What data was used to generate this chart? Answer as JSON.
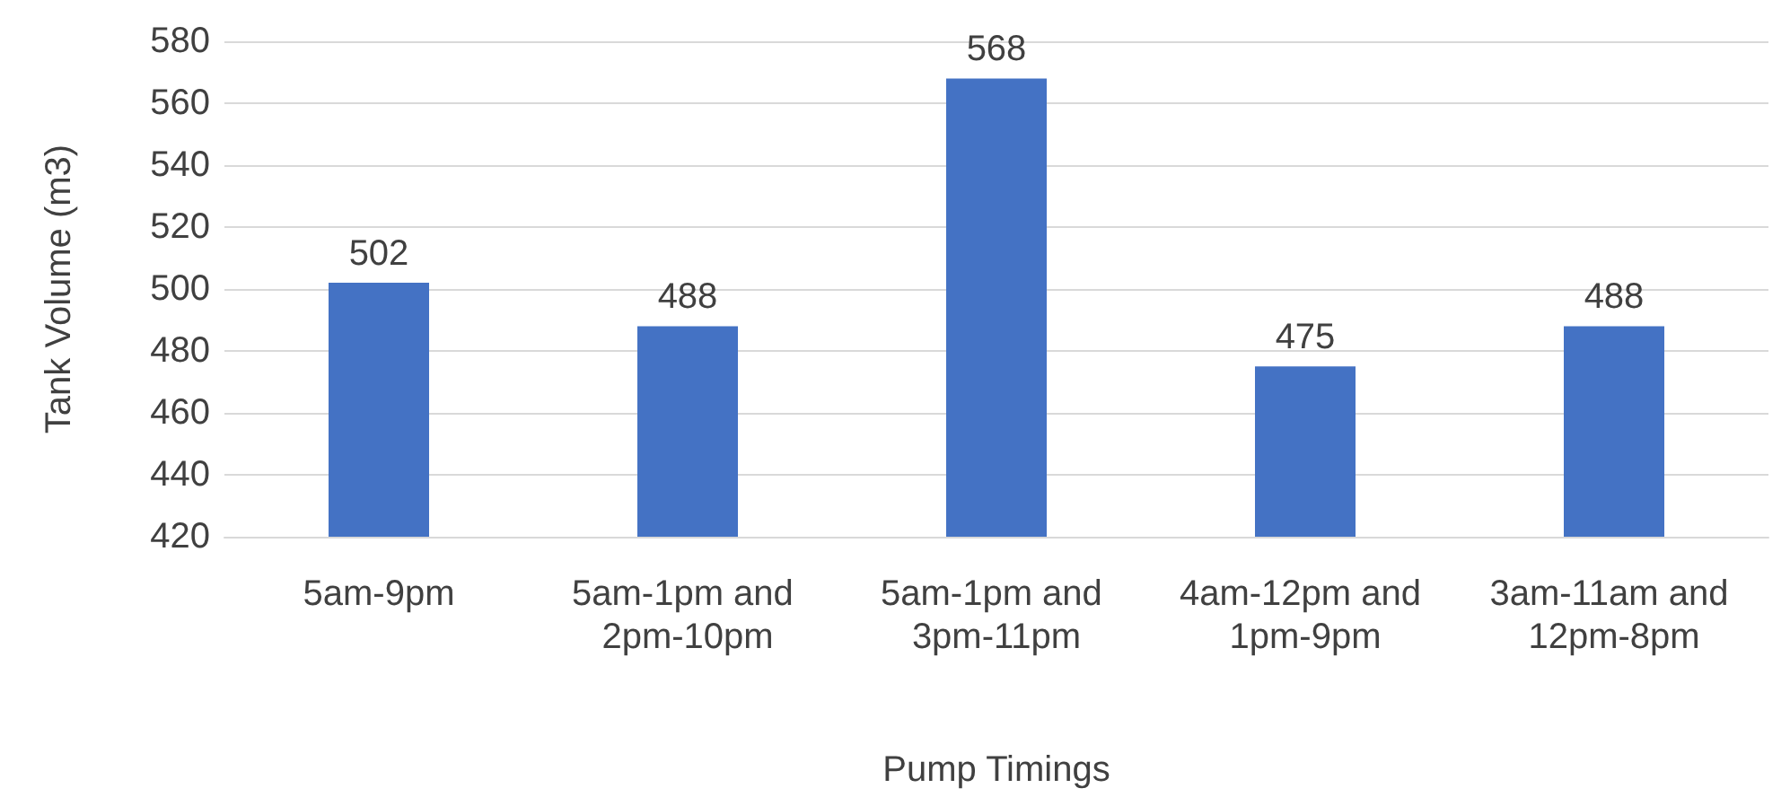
{
  "chart_data": {
    "type": "bar",
    "xlabel": "Pump Timings",
    "ylabel": "Tank Volume (m3)",
    "categories": [
      "5am-9pm",
      "5am-1pm and 2pm-10pm",
      "5am-1pm and 3pm-11pm",
      "4am-12pm and 1pm-9pm",
      "3am-11am and 12pm-8pm"
    ],
    "values": [
      502,
      488,
      568,
      475,
      488
    ],
    "color": "#4472c4",
    "ylim": [
      420,
      580
    ],
    "yticks": [
      420,
      440,
      460,
      480,
      500,
      520,
      540,
      560,
      580
    ],
    "grid": "y",
    "data_labels": true
  }
}
